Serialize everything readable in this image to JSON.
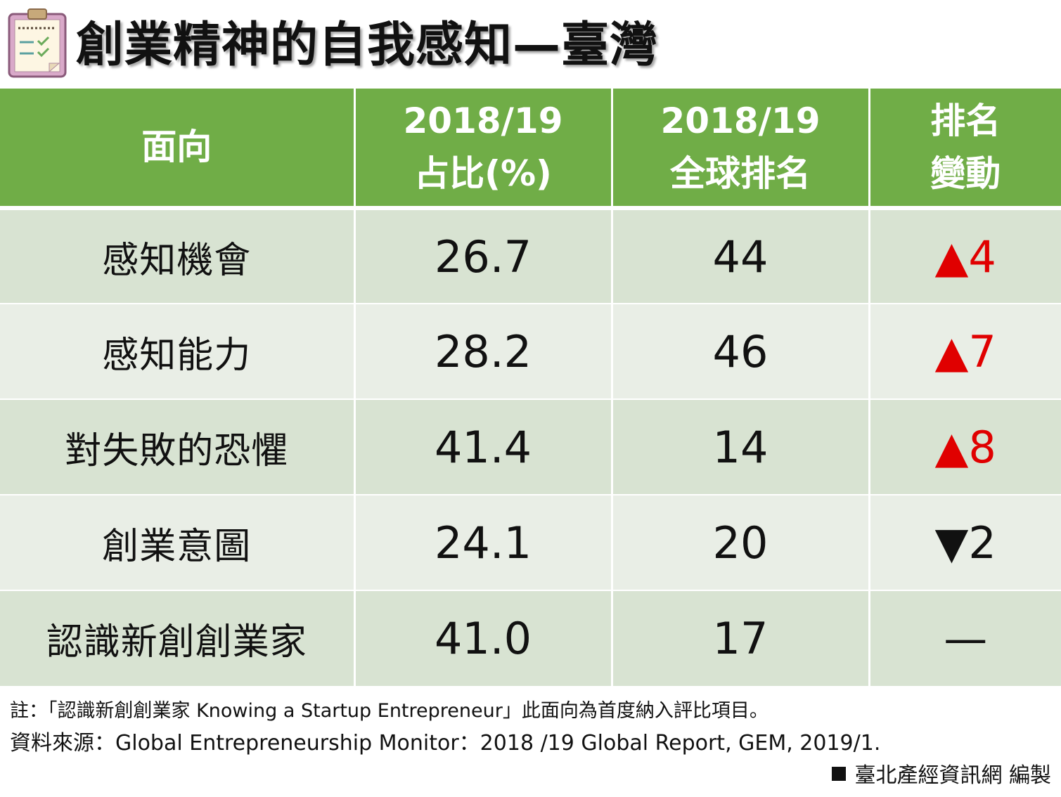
{
  "title": "創業精神的自我感知—臺灣",
  "colors": {
    "header_bg": "#70ad47",
    "row_odd": "#d8e3d2",
    "row_even": "#e9eee6",
    "up": "#e00000",
    "down": "#111111"
  },
  "icons": {
    "title": "clipboard-checklist-icon"
  },
  "chart_data": {
    "type": "table",
    "columns": [
      {
        "lines": [
          "面向"
        ]
      },
      {
        "lines": [
          "2018/19",
          "占比(%)"
        ]
      },
      {
        "lines": [
          "2018/19",
          "全球排名"
        ]
      },
      {
        "lines": [
          "排名",
          "變動"
        ]
      }
    ],
    "rows": [
      {
        "facet": "感知機會",
        "share": "26.7",
        "rank": "44",
        "change": "▲4",
        "direction": "up"
      },
      {
        "facet": "感知能力",
        "share": "28.2",
        "rank": "46",
        "change": "▲7",
        "direction": "up"
      },
      {
        "facet": "對失敗的恐懼",
        "share": "41.4",
        "rank": "14",
        "change": "▲8",
        "direction": "up"
      },
      {
        "facet": "創業意圖",
        "share": "24.1",
        "rank": "20",
        "change": "▼2",
        "direction": "down"
      },
      {
        "facet": "認識新創創業家",
        "share": "41.0",
        "rank": "17",
        "change": "—",
        "direction": "same"
      }
    ]
  },
  "footer": {
    "note": "註：「認識新創創業家 Knowing a Startup Entrepreneur」此面向為首度納入評比項目。",
    "source": "資料來源：Global Entrepreneurship Monitor：2018 /19 Global Report, GEM, 2019/1.",
    "credit": "臺北產經資訊網  編製"
  }
}
